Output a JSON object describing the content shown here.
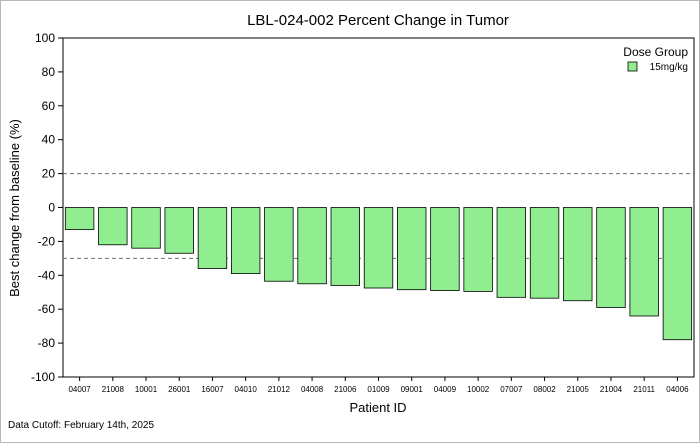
{
  "chart_data": {
    "type": "bar",
    "title": "LBL-024-002 Percent Change in Tumor",
    "xlabel": "Patient ID",
    "ylabel": "Best change from baseline (%)",
    "ylim": [
      -100,
      100
    ],
    "yticks": [
      100,
      80,
      60,
      40,
      20,
      0,
      -20,
      -40,
      -60,
      -80,
      -100
    ],
    "reference_lines": [
      20,
      -30
    ],
    "legend": {
      "title": "Dose Group",
      "placement": "top-right"
    },
    "series": [
      {
        "name": "15mg/kg",
        "color": "#90EE90",
        "values": [
          -13,
          -22,
          -24,
          -27,
          -36,
          -39,
          -43.5,
          -45,
          -46,
          -47.5,
          -48.5,
          -49,
          -49.5,
          -53,
          -53.5,
          -55,
          -59,
          -64,
          -78
        ]
      }
    ],
    "categories": [
      "04007",
      "21008",
      "10001",
      "26001",
      "16007",
      "04010",
      "21012",
      "04008",
      "21006",
      "01009",
      "09001",
      "04009",
      "10002",
      "07007",
      "08002",
      "21005",
      "21004",
      "21011",
      "04006"
    ]
  },
  "footer": "Data Cutoff: February 14th, 2025"
}
